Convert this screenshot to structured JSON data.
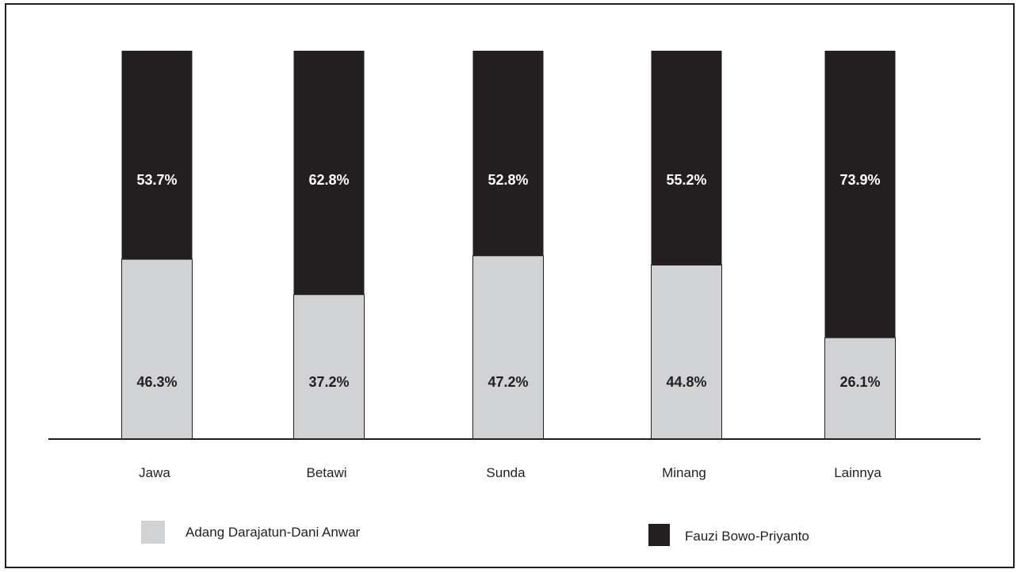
{
  "chart_data": {
    "type": "bar",
    "stacked": true,
    "normalized_percent": true,
    "categories": [
      "Jawa",
      "Betawi",
      "Sunda",
      "Minang",
      "Lainnya"
    ],
    "series": [
      {
        "name": "Adang Darajatun-Dani Anwar",
        "values": [
          46.3,
          37.2,
          47.2,
          44.8,
          26.1
        ],
        "labels": [
          "46.3%",
          "37.2%",
          "47.2%",
          "44.8%",
          "26.1%"
        ],
        "color": "#d1d2d4"
      },
      {
        "name": "Fauzi Bowo-Priyanto",
        "values": [
          53.7,
          62.8,
          52.8,
          55.2,
          73.9
        ],
        "labels": [
          "53.7%",
          "62.8%",
          "52.8%",
          "55.2%",
          "73.9%"
        ],
        "color": "#231f20"
      }
    ],
    "ylim": [
      0,
      100
    ],
    "grid": false,
    "legend_position": "bottom",
    "title": "",
    "xlabel": "",
    "ylabel": ""
  },
  "legend": {
    "items": [
      {
        "label": "Adang Darajatun-Dani Anwar",
        "color": "#d1d2d4"
      },
      {
        "label": "Fauzi Bowo-Priyanto",
        "color": "#231f20"
      }
    ]
  }
}
